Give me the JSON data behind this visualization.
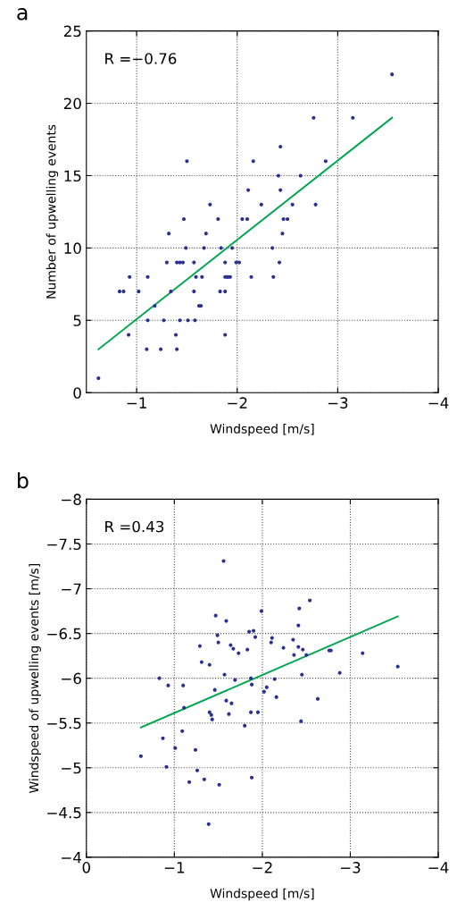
{
  "chart_data": [
    {
      "type": "scatter",
      "title": "a",
      "xlabel": "Windspeed [m/s]",
      "ylabel": "Number of upwelling events",
      "xlim": [
        -0.5,
        -4
      ],
      "xticks": [
        {
          "value": -1,
          "label": "−1"
        },
        {
          "value": -2,
          "label": "−2"
        },
        {
          "value": -3,
          "label": "−3"
        },
        {
          "value": -4,
          "label": "−4"
        }
      ],
      "ylim": [
        0,
        25
      ],
      "yticks": [
        0,
        5,
        10,
        15,
        20,
        25
      ],
      "grid": true,
      "marker": "circle",
      "legend": false,
      "annotations": [
        "R =−0.76"
      ],
      "series": [
        {
          "color": "#2b3190",
          "x": [
            -3.54,
            -2.76,
            -3.15,
            -2.43,
            -1.5,
            -2.16,
            -2.88,
            -2.41,
            -2.63,
            -2.11,
            -2.43,
            -1.73,
            -2.24,
            -2.55,
            -2.78,
            -1.47,
            -1.81,
            -2.05,
            -2.1,
            -2.46,
            -2.5,
            -1.32,
            -1.69,
            -2.45,
            -1.49,
            -1.67,
            -1.84,
            -1.95,
            -2.35,
            -1.3,
            -1.4,
            -1.43,
            -1.46,
            -1.57,
            -1.88,
            -1.99,
            -2.02,
            -2.42,
            -0.93,
            -1.11,
            -1.59,
            -1.65,
            -1.88,
            -1.9,
            -1.91,
            -1.93,
            -2.14,
            -2.36,
            -0.83,
            -0.87,
            -1.02,
            -1.34,
            -1.57,
            -1.83,
            -1.88,
            -1.18,
            -1.62,
            -1.64,
            -1.11,
            -1.27,
            -1.43,
            -1.51,
            -1.58,
            -0.92,
            -1.39,
            -1.88,
            -1.1,
            -1.24,
            -1.4,
            -0.62
          ],
          "values": [
            22,
            19,
            19,
            17,
            16,
            16,
            16,
            15,
            15,
            14,
            14,
            13,
            13,
            13,
            13,
            12,
            12,
            12,
            12,
            12,
            12,
            11,
            11,
            11,
            10,
            10,
            10,
            10,
            10,
            9,
            9,
            9,
            9,
            9,
            9,
            9,
            9,
            9,
            8,
            8,
            8,
            8,
            8,
            8,
            8,
            8,
            8,
            8,
            7,
            7,
            7,
            7,
            7,
            7,
            7,
            6,
            6,
            6,
            5,
            5,
            5,
            5,
            5,
            4,
            4,
            4,
            3,
            3,
            3,
            1
          ]
        },
        {
          "type": "line",
          "marker": "none",
          "color": "#00a650",
          "x": [
            -0.62,
            -3.54
          ],
          "values": [
            3,
            19
          ]
        }
      ]
    },
    {
      "type": "scatter",
      "title": "b",
      "xlabel": "Windspeed [m/s]",
      "ylabel": "Windspeed of upwelling events [m/s]",
      "xlim": [
        0,
        -4
      ],
      "xticks": [
        0,
        {
          "value": -1,
          "label": "−1"
        },
        {
          "value": -2,
          "label": "−2"
        },
        {
          "value": -3,
          "label": "−3"
        },
        {
          "value": -4,
          "label": "−4"
        }
      ],
      "ylim": [
        -4,
        -8
      ],
      "yticks": [
        {
          "value": -8,
          "label": "−8"
        },
        {
          "value": -7.5,
          "label": "−7.5"
        },
        {
          "value": -7,
          "label": "−7"
        },
        {
          "value": -6.5,
          "label": "−6.5"
        },
        {
          "value": -6,
          "label": "−6"
        },
        {
          "value": -5.5,
          "label": "−5.5"
        },
        {
          "value": -5,
          "label": "−5"
        },
        {
          "value": -4.5,
          "label": "−4.5"
        },
        {
          "value": -4,
          "label": "−4"
        }
      ],
      "grid": true,
      "marker": "circle",
      "legend": false,
      "annotations": [
        "R =0.43"
      ],
      "series": [
        {
          "color": "#2b3190",
          "x": [
            -1.56,
            -2.54,
            -2.42,
            -1.47,
            -1.59,
            -1.99,
            -2.41,
            -1.85,
            -1.9,
            -1.49,
            -1.92,
            -2.11,
            -2.1,
            -2.35,
            -1.5,
            -1.29,
            -1.64,
            -1.67,
            -1.83,
            -1.73,
            -2.24,
            -2.41,
            -2.46,
            -2.36,
            -2.5,
            -2.76,
            -2.78,
            -3.14,
            -3.54,
            -1.31,
            -1.4,
            -2.88,
            -2.45,
            -1.57,
            -0.83,
            -0.93,
            -1.1,
            -1.69,
            -1.87,
            -2.14,
            -1.88,
            -2.05,
            -2.02,
            -1.46,
            -2.16,
            -2.63,
            -1.59,
            -1.65,
            -1.11,
            -1.4,
            -1.42,
            -1.43,
            -1.62,
            -1.87,
            -1.95,
            -1.8,
            -2.44,
            -1.09,
            -0.87,
            -1.01,
            -1.24,
            -0.62,
            -0.91,
            -1.26,
            -1.17,
            -1.34,
            -1.51,
            -1.88,
            -1.39
          ],
          "values": [
            -7.31,
            -6.87,
            -6.78,
            -6.7,
            -6.64,
            -6.75,
            -6.59,
            -6.52,
            -6.53,
            -6.48,
            -6.46,
            -6.45,
            -6.4,
            -6.43,
            -6.4,
            -6.36,
            -6.37,
            -6.33,
            -6.32,
            -6.28,
            -6.34,
            -6.35,
            -6.32,
            -6.26,
            -6.26,
            -6.31,
            -6.31,
            -6.28,
            -6.13,
            -6.18,
            -6.15,
            -6.06,
            -6.04,
            -6.04,
            -6.0,
            -5.92,
            -5.92,
            -5.98,
            -6.0,
            -5.99,
            -5.93,
            -5.9,
            -5.85,
            -5.87,
            -5.79,
            -5.77,
            -5.75,
            -5.72,
            -5.67,
            -5.62,
            -5.59,
            -5.54,
            -5.6,
            -5.62,
            -5.62,
            -5.47,
            -5.52,
            -5.41,
            -5.33,
            -5.22,
            -5.2,
            -5.13,
            -5.01,
            -4.97,
            -4.84,
            -4.87,
            -4.81,
            -4.89,
            -4.37
          ]
        },
        {
          "type": "line",
          "marker": "none",
          "color": "#00a650",
          "x": [
            -0.62,
            -3.54
          ],
          "values": [
            -5.45,
            -6.69
          ]
        }
      ]
    }
  ]
}
